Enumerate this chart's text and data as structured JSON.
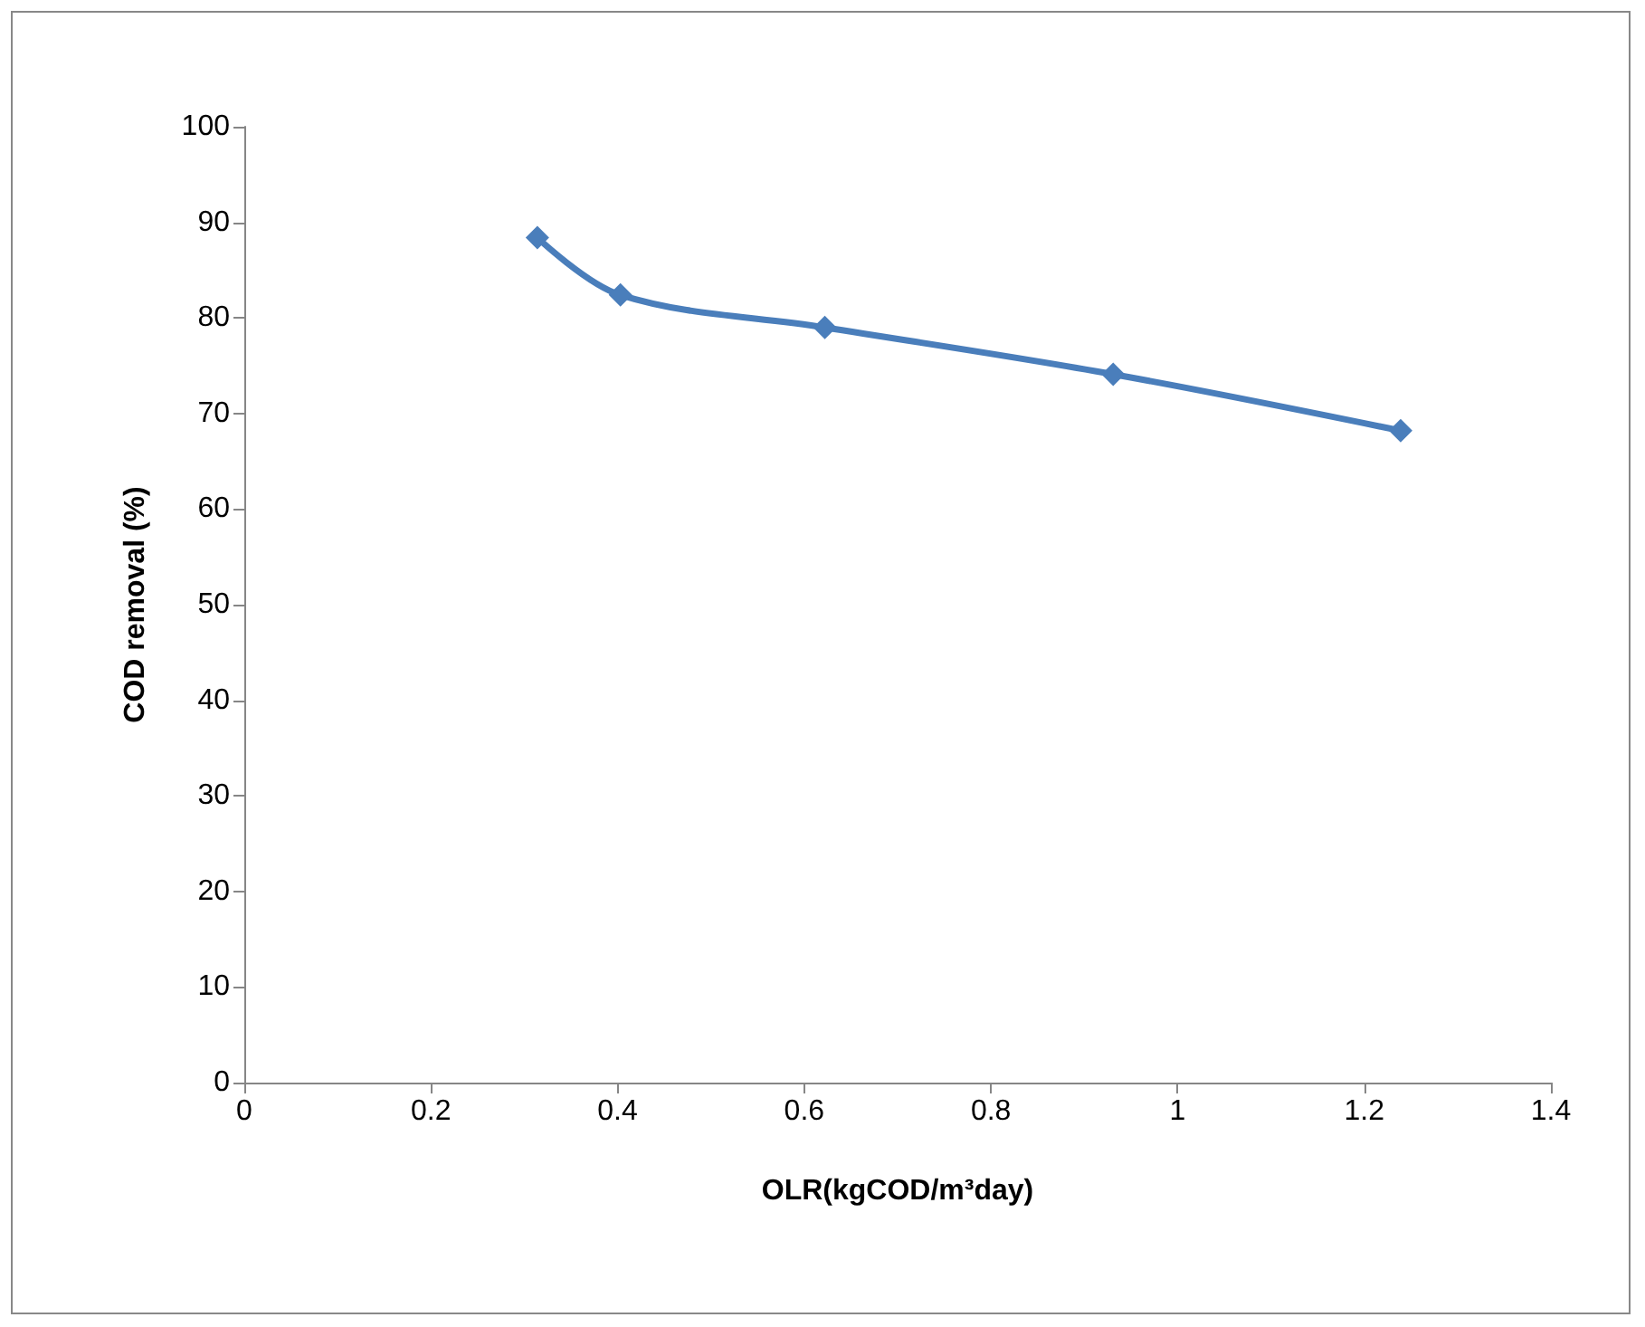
{
  "chart_data": {
    "type": "line",
    "xlabel": "OLR(kgCOD/m³day)",
    "ylabel": "COD removal (%)",
    "x": [
      0.314,
      0.403,
      0.622,
      0.931,
      1.239
    ],
    "series": [
      {
        "color": "#4a7ebb",
        "values": [
          88.4,
          82.4,
          79.0,
          74.1,
          68.2
        ]
      }
    ],
    "xlim": [
      0,
      1.4
    ],
    "xticks": [
      0,
      0.2,
      0.4,
      0.6,
      0.8,
      1,
      1.2,
      1.4
    ],
    "ylim": [
      0,
      100
    ],
    "yticks": [
      0,
      10,
      20,
      30,
      40,
      50,
      60,
      70,
      80,
      90,
      100
    ],
    "grid": false,
    "marker": "diamond",
    "line_style": "solid"
  }
}
